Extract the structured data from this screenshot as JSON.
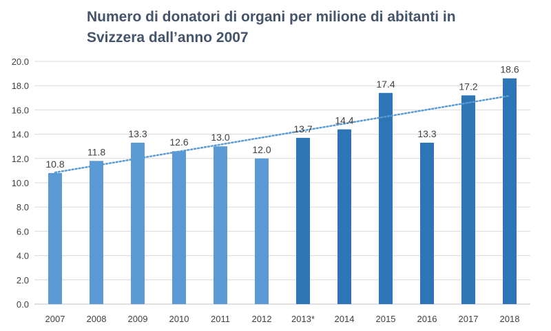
{
  "chart_data": {
    "type": "bar",
    "title": "Numero di donatori di organi per milione di abitanti in\nSvizzera dall’anno 2007",
    "categories": [
      "2007",
      "2008",
      "2009",
      "2010",
      "2011",
      "2012",
      "2013*",
      "2014",
      "2015",
      "2016",
      "2017",
      "2018"
    ],
    "values": [
      10.8,
      11.8,
      13.3,
      12.6,
      13.0,
      12.0,
      13.7,
      14.4,
      17.4,
      13.3,
      17.2,
      18.6
    ],
    "value_labels": [
      "10.8",
      "11.8",
      "13.3",
      "12.6",
      "13.0",
      "12.0",
      "13.7",
      "14.4",
      "17.4",
      "13.3",
      "17.2",
      "18.6"
    ],
    "bar_colors": [
      "#5b9bd5",
      "#5b9bd5",
      "#5b9bd5",
      "#5b9bd5",
      "#5b9bd5",
      "#5b9bd5",
      "#2e75b6",
      "#2e75b6",
      "#2e75b6",
      "#2e75b6",
      "#2e75b6",
      "#2e75b6"
    ],
    "trendline": {
      "type": "linear",
      "style": "dotted",
      "color": "#5b9bd5"
    },
    "ylim": [
      0,
      20
    ],
    "yticks": [
      "0.0",
      "2.0",
      "4.0",
      "6.0",
      "8.0",
      "10.0",
      "12.0",
      "14.0",
      "16.0",
      "18.0",
      "20.0"
    ],
    "xlabel": "",
    "ylabel": "",
    "grid": true,
    "legend": "none"
  }
}
